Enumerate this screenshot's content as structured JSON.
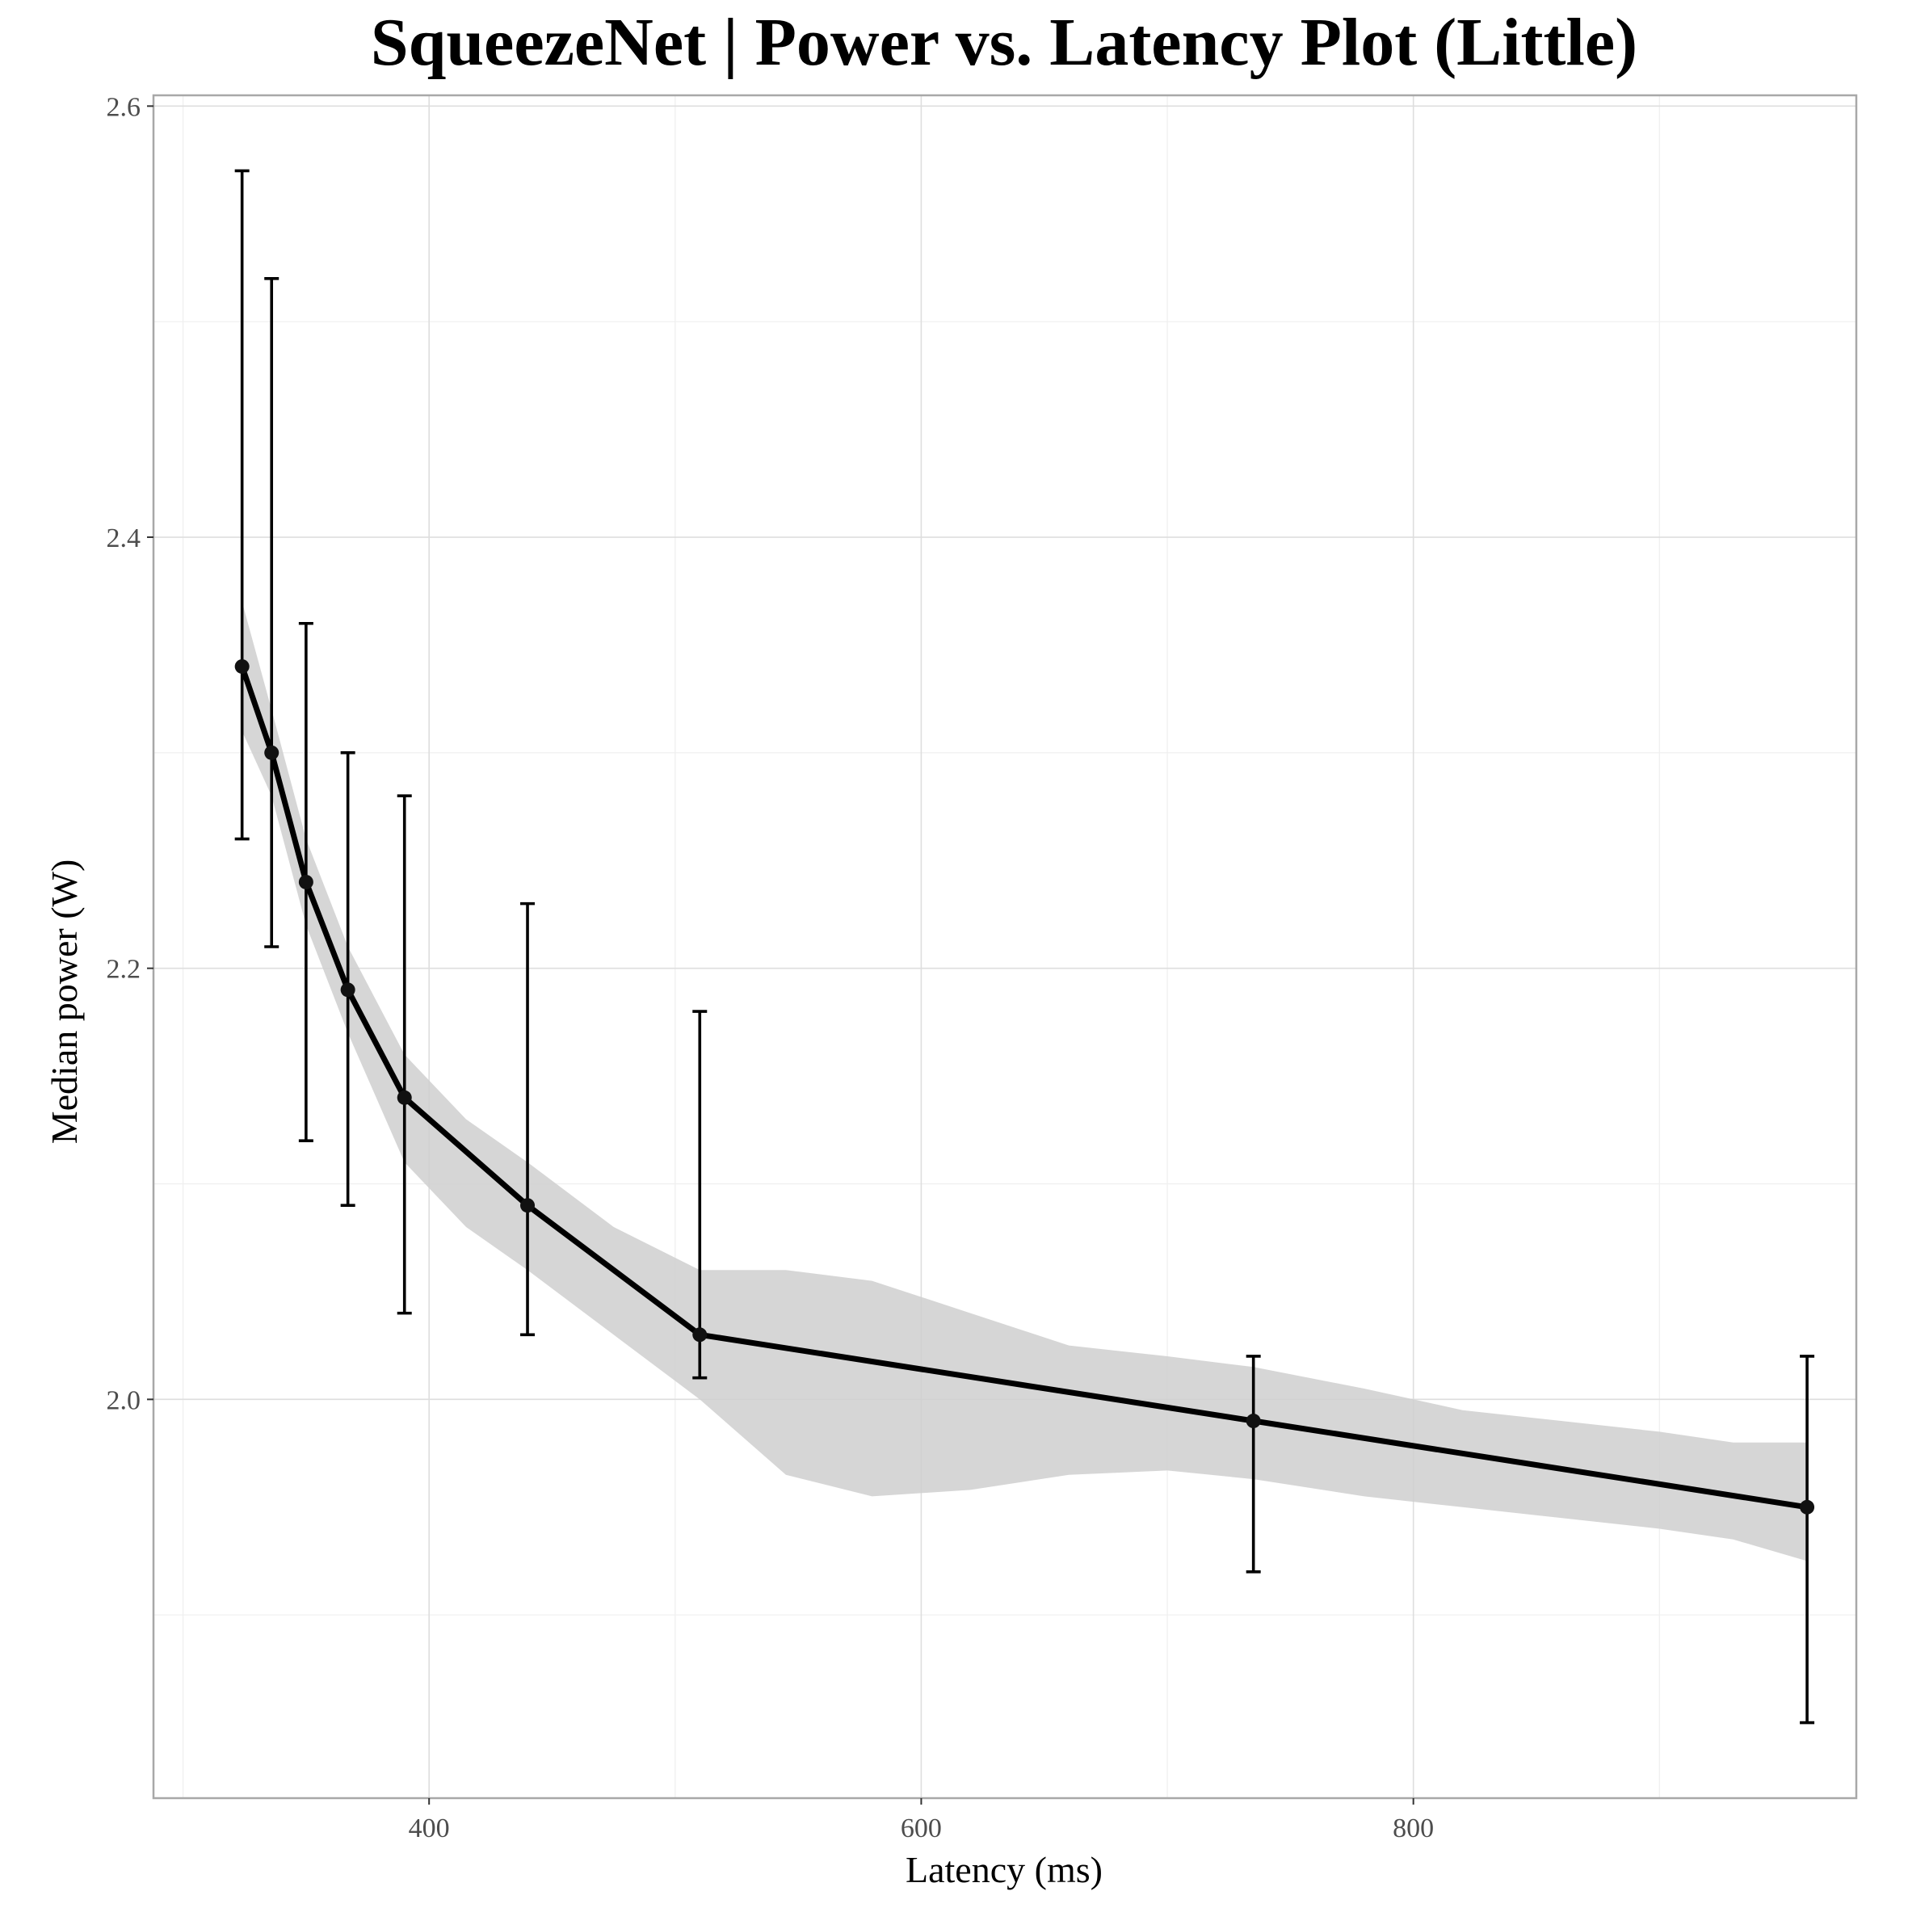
{
  "chart_data": {
    "type": "line",
    "title": "SqueezeNet | Power vs. Latency Plot (Little)",
    "xlabel": "Latency (ms)",
    "ylabel": "Median power (W)",
    "xlim": [
      288,
      980
    ],
    "ylim": [
      1.815,
      2.605
    ],
    "x_ticks": [
      400,
      600,
      800
    ],
    "y_ticks": [
      2.0,
      2.2,
      2.4,
      2.6
    ],
    "x_tick_labels": [
      "400",
      "600",
      "800"
    ],
    "y_tick_labels": [
      "2.0",
      "2.2",
      "2.4",
      "2.6"
    ],
    "grid": true,
    "points": [
      {
        "x": 324,
        "y": 2.34,
        "ymin": 2.26,
        "ymax": 2.57
      },
      {
        "x": 336,
        "y": 2.3,
        "ymin": 2.21,
        "ymax": 2.52
      },
      {
        "x": 350,
        "y": 2.24,
        "ymin": 2.12,
        "ymax": 2.36
      },
      {
        "x": 367,
        "y": 2.19,
        "ymin": 2.09,
        "ymax": 2.3
      },
      {
        "x": 390,
        "y": 2.14,
        "ymin": 2.04,
        "ymax": 2.28
      },
      {
        "x": 440,
        "y": 2.09,
        "ymin": 2.03,
        "ymax": 2.23
      },
      {
        "x": 510,
        "y": 2.03,
        "ymin": 2.01,
        "ymax": 2.18
      },
      {
        "x": 735,
        "y": 1.99,
        "ymin": 1.92,
        "ymax": 2.02
      },
      {
        "x": 960,
        "y": 1.95,
        "ymin": 1.85,
        "ymax": 2.02
      }
    ],
    "confidence_band": {
      "x": [
        324,
        336,
        350,
        367,
        390,
        415,
        440,
        475,
        510,
        545,
        580,
        620,
        660,
        700,
        735,
        780,
        820,
        860,
        900,
        930,
        960
      ],
      "upper": [
        2.37,
        2.32,
        2.26,
        2.21,
        2.16,
        2.13,
        2.11,
        2.08,
        2.06,
        2.06,
        2.055,
        2.04,
        2.025,
        2.02,
        2.015,
        2.005,
        1.995,
        1.99,
        1.985,
        1.98,
        1.98
      ],
      "lower": [
        2.31,
        2.28,
        2.22,
        2.17,
        2.11,
        2.08,
        2.06,
        2.03,
        2.0,
        1.965,
        1.955,
        1.958,
        1.965,
        1.967,
        1.963,
        1.955,
        1.95,
        1.945,
        1.94,
        1.935,
        1.925
      ]
    }
  }
}
